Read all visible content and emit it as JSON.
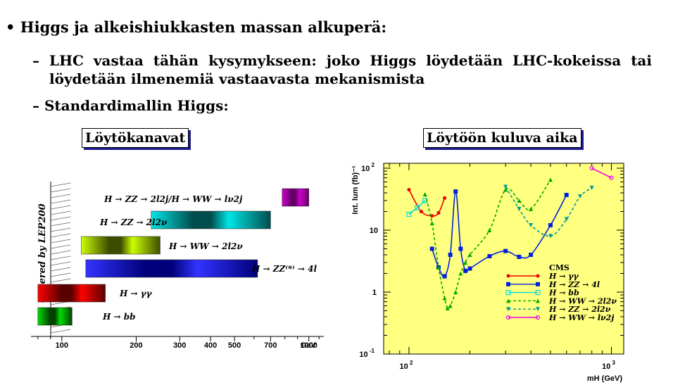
{
  "slide": {
    "bullet_marker": "•",
    "bullet_text": "Higgs ja alkeishiukkasten massan alkuperä:",
    "dash": "–",
    "sub1_text": "LHC vastaa tähän kysymykseen: joko Higgs löydetään LHC-kokeissa tai löydetään ilmenemiä vastaavasta mekanismista",
    "sub2_text": "Standardimallin Higgs:",
    "left_title": "Löytökanavat",
    "right_title": "Löytöön kuluva aika"
  },
  "colors": {
    "accent_shadow": "#1a1a8c",
    "plot_background": "#ffff80"
  },
  "chart_data": [
    {
      "type": "bar",
      "orientation": "horizontal",
      "x_scale": "log",
      "xlim": [
        75,
        1150
      ],
      "x_ticks": [
        100,
        200,
        300,
        400,
        500,
        700,
        1000
      ],
      "x_tick_labels": [
        "100",
        "200",
        "300",
        "400",
        "500",
        "700",
        "1000"
      ],
      "x_unit": "GeV",
      "side_label": "Covered by LEP200",
      "bars": [
        {
          "label": "H → ZZ → 2l2j/H → WW → lν2j",
          "start": 780,
          "end": 1000,
          "colors": [
            "#cc00cc",
            "#660066"
          ]
        },
        {
          "label": "H → ZZ → 2l2ν",
          "start": 230,
          "end": 700,
          "colors": [
            "#00e5e5",
            "#004d4d"
          ]
        },
        {
          "label": "H → WW → 2l2ν",
          "start": 120,
          "end": 250,
          "colors": [
            "#ccff00",
            "#3d4d00"
          ]
        },
        {
          "label": "H → ZZ⁽*⁾ → 4l",
          "start": 125,
          "end": 620,
          "colors": [
            "#3333ff",
            "#00007a"
          ]
        },
        {
          "label": "H → γγ",
          "start": 80,
          "end": 150,
          "colors": [
            "#ff0000",
            "#5a0000"
          ]
        },
        {
          "label": "H → bb",
          "start": 80,
          "end": 110,
          "colors": [
            "#00dd00",
            "#004400"
          ]
        }
      ]
    },
    {
      "type": "line",
      "x_scale": "log",
      "y_scale": "log",
      "xlim": [
        75,
        1150
      ],
      "ylim": [
        0.1,
        120
      ],
      "xlabel": "mH (GeV)",
      "ylabel": "Int. lum (fb)⁻¹",
      "x_ticks": [
        100,
        1000
      ],
      "y_ticks": [
        0.1,
        1,
        10,
        100
      ],
      "legend_title": "CMS",
      "legend_position": "bottom-right",
      "series": [
        {
          "name": "H → γγ",
          "color": "#ee0000",
          "dash": "solid",
          "marker": "circle",
          "x": [
            100,
            115,
            130,
            140,
            150
          ],
          "y": [
            45,
            20,
            17,
            19,
            33
          ]
        },
        {
          "name": "H → ZZ → 4l",
          "color": "#0022dd",
          "dash": "solid",
          "marker": "square",
          "x": [
            130,
            140,
            150,
            160,
            170,
            180,
            190,
            200,
            250,
            300,
            350,
            400,
            500,
            600
          ],
          "y": [
            5,
            2.5,
            1.8,
            4,
            42,
            5,
            2.2,
            2.4,
            3.8,
            4.6,
            3.7,
            4.0,
            12,
            37
          ]
        },
        {
          "name": "H → bb",
          "color": "#00dddd",
          "dash": "solid",
          "marker": "open-square",
          "x": [
            100,
            110,
            120
          ],
          "y": [
            18,
            23,
            30
          ]
        },
        {
          "name": "H → WW → 2l2ν",
          "color": "#00aa00",
          "dash": "dashed",
          "marker": "triangle",
          "x": [
            120,
            130,
            140,
            150,
            155,
            160,
            170,
            180,
            190,
            200,
            250,
            300,
            350,
            400,
            500
          ],
          "y": [
            38,
            13,
            2.5,
            0.8,
            0.55,
            0.6,
            1,
            2,
            3,
            4,
            10,
            45,
            30,
            22,
            65
          ]
        },
        {
          "name": "H → ZZ → 2l2ν",
          "color": "#009999",
          "dash": "dashed",
          "marker": "triangle-down",
          "x": [
            300,
            350,
            400,
            500,
            600,
            700,
            800
          ],
          "y": [
            50,
            22,
            12,
            8,
            15,
            35,
            48
          ]
        },
        {
          "name": "H → WW → lν2j",
          "color": "#ee00ee",
          "dash": "solid",
          "marker": "open-circle",
          "x": [
            800,
            1000
          ],
          "y": [
            100,
            70
          ]
        }
      ]
    }
  ]
}
